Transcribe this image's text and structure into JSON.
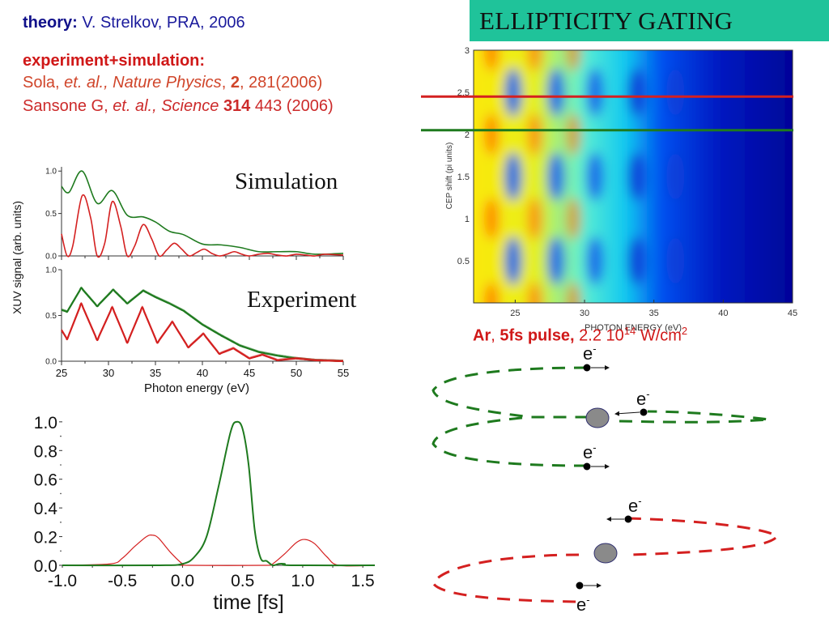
{
  "references": {
    "theory_label": "theory:",
    "theory_text": " V. Strelkov, PRA, 2006",
    "exp_sim_label": "experiment+simulation:",
    "sola": {
      "authors": "Sola, ",
      "etal": "et. al., Nature Physics",
      "sep": ", ",
      "volume": "2",
      "rest": ", 281(2006)"
    },
    "sansone": {
      "authors": "Sansone G, ",
      "etal": "et. al., Science",
      "sep": " ",
      "volume": "314",
      "rest": " 443 (2006)"
    }
  },
  "slide_title": "ELLIPTICITY GATING",
  "caption": {
    "gas": "Ar",
    "sep1": ", ",
    "pulse": "5fs pulse,",
    "intensity": " 2.2 10",
    "exponent": "14",
    "unit": " W/cm",
    "unit_exp": "2"
  },
  "labels": {
    "simulation": "Simulation",
    "experiment": "Experiment"
  },
  "diagram": {
    "electron_label": "e",
    "electron_charge": "-",
    "colors": {
      "green_traj": "#1e7a1e",
      "red_traj": "#d42020",
      "ion": "#888888"
    }
  },
  "chart_data": [
    {
      "type": "line",
      "id": "simulation-spectrum",
      "title": "Simulation",
      "xlabel": "Photon energy (eV)",
      "ylabel": "XUV signal (arb. units)",
      "xlim": [
        25,
        55
      ],
      "ylim": [
        0,
        1.05
      ],
      "yticks": [
        "0.0",
        "0.5",
        "1.0"
      ],
      "xticks": [
        "25",
        "30",
        "35",
        "40",
        "45",
        "50",
        "55"
      ],
      "series": [
        {
          "name": "linear/ungated (green)",
          "color": "#1e7a1e",
          "x": [
            25,
            25.8,
            27.2,
            28.8,
            30.4,
            32,
            33.7,
            35,
            36.5,
            38,
            40,
            42,
            44,
            46,
            48,
            50,
            52,
            55
          ],
          "y": [
            0.82,
            0.75,
            1.0,
            0.62,
            0.77,
            0.48,
            0.46,
            0.4,
            0.29,
            0.25,
            0.14,
            0.13,
            0.1,
            0.05,
            0.05,
            0.05,
            0.02,
            0.03
          ]
        },
        {
          "name": "gated (red)",
          "color": "#d42020",
          "x": [
            25,
            25.6,
            26.2,
            27.2,
            28.1,
            28.8,
            29.6,
            30.4,
            31.3,
            32,
            32.8,
            33.7,
            34.6,
            35.4,
            36.2,
            37,
            37.8,
            38.6,
            39.4,
            40.2,
            41,
            41.8,
            42.6,
            43.4,
            44.2,
            45,
            46,
            47,
            48,
            49,
            50,
            51,
            52,
            53,
            55
          ],
          "y": [
            0.26,
            0.0,
            0.12,
            0.71,
            0.45,
            0.0,
            0.15,
            0.64,
            0.35,
            0.0,
            0.12,
            0.37,
            0.2,
            0.0,
            0.07,
            0.15,
            0.08,
            0.0,
            0.04,
            0.08,
            0.03,
            0.0,
            0.02,
            0.05,
            0.02,
            0.0,
            0.02,
            0.03,
            0.01,
            0.0,
            0.02,
            0.01,
            0.0,
            0.02,
            0.01
          ]
        }
      ]
    },
    {
      "type": "line",
      "id": "experiment-spectrum",
      "title": "Experiment",
      "xlabel": "Photon energy (eV)",
      "ylabel": "XUV signal (arb. units)",
      "xlim": [
        25,
        55
      ],
      "ylim": [
        0,
        1.0
      ],
      "yticks": [
        "0.0",
        "0.5",
        "1.0"
      ],
      "xticks": [
        "25",
        "30",
        "35",
        "40",
        "45",
        "50",
        "55"
      ],
      "series": [
        {
          "name": "linear/ungated (green)",
          "color": "#1e7a1e",
          "x": [
            25,
            25.6,
            27.1,
            28.8,
            30.5,
            32,
            33.7,
            35,
            36.5,
            38,
            40,
            42,
            44,
            46,
            48,
            50,
            52,
            55
          ],
          "y": [
            0.56,
            0.54,
            0.8,
            0.6,
            0.78,
            0.63,
            0.77,
            0.7,
            0.63,
            0.55,
            0.4,
            0.28,
            0.17,
            0.1,
            0.06,
            0.03,
            0.01,
            0.0
          ]
        },
        {
          "name": "gated (red)",
          "color": "#d42020",
          "x": [
            25,
            25.6,
            27.1,
            28.8,
            30.4,
            32,
            33.6,
            35.2,
            36.8,
            38.5,
            40.1,
            41.8,
            43.3,
            45,
            46.4,
            48,
            50,
            52,
            55
          ],
          "y": [
            0.34,
            0.24,
            0.63,
            0.23,
            0.59,
            0.2,
            0.59,
            0.2,
            0.43,
            0.15,
            0.3,
            0.08,
            0.14,
            0.03,
            0.07,
            0.01,
            0.03,
            0.01,
            0.0
          ]
        }
      ]
    },
    {
      "type": "line",
      "id": "time-profile",
      "xlabel": "time [fs]",
      "ylabel": "",
      "xlim": [
        -1.0,
        1.6
      ],
      "ylim": [
        0,
        1.05
      ],
      "yticks": [
        "0.0",
        "0.2",
        "0.4",
        "0.6",
        "0.8",
        "1.0"
      ],
      "xticks": [
        "-1.0",
        "-0.5",
        "0.0",
        "0.5",
        "1.0",
        "1.5"
      ],
      "series": [
        {
          "name": "gated pulse (green)",
          "color": "#1e7a1e",
          "x": [
            -1.0,
            -0.2,
            0.0,
            0.1,
            0.2,
            0.3,
            0.4,
            0.45,
            0.5,
            0.55,
            0.6,
            0.65,
            0.7,
            0.75,
            0.8,
            0.85,
            0.9,
            1.6
          ],
          "y": [
            0.0,
            0.0,
            0.01,
            0.06,
            0.2,
            0.55,
            0.93,
            1.0,
            0.95,
            0.7,
            0.25,
            0.05,
            0.03,
            0.0,
            0.01,
            0.01,
            0.0,
            0.0
          ]
        },
        {
          "name": "satellite pulses (red)",
          "color": "#d42020",
          "x": [
            -1.0,
            -0.6,
            -0.5,
            -0.4,
            -0.3,
            -0.25,
            -0.2,
            -0.1,
            0.0,
            0.05,
            0.7,
            0.75,
            0.85,
            0.95,
            1.02,
            1.1,
            1.2,
            1.3,
            1.6
          ],
          "y": [
            0.0,
            0.01,
            0.05,
            0.13,
            0.2,
            0.21,
            0.19,
            0.09,
            0.01,
            0.0,
            0.0,
            0.01,
            0.08,
            0.16,
            0.18,
            0.15,
            0.06,
            0.0,
            0.0
          ]
        }
      ]
    },
    {
      "type": "heatmap",
      "id": "cep-scan",
      "xlabel": "PHOTON ENERGY (eV)",
      "ylabel": "CEP shift (pi units)",
      "xlim": [
        22,
        45
      ],
      "ylim": [
        0,
        3
      ],
      "xticks": [
        "25",
        "30",
        "35",
        "40",
        "45"
      ],
      "yticks": [
        "0.5",
        "1",
        "1.5",
        "2",
        "2.5",
        "3"
      ],
      "colormap": "jet",
      "harmonic_peaks_eV": [
        23.3,
        26.4,
        29.2,
        32.2,
        35.0
      ],
      "intensity_maxima_cep": [
        0.0,
        1.0,
        2.0,
        3.0
      ],
      "cutoff_eV": 36,
      "marker_lines": [
        {
          "color": "#d42020",
          "cep": 2.45
        },
        {
          "color": "#1e7a1e",
          "cep": 2.05
        }
      ]
    }
  ]
}
